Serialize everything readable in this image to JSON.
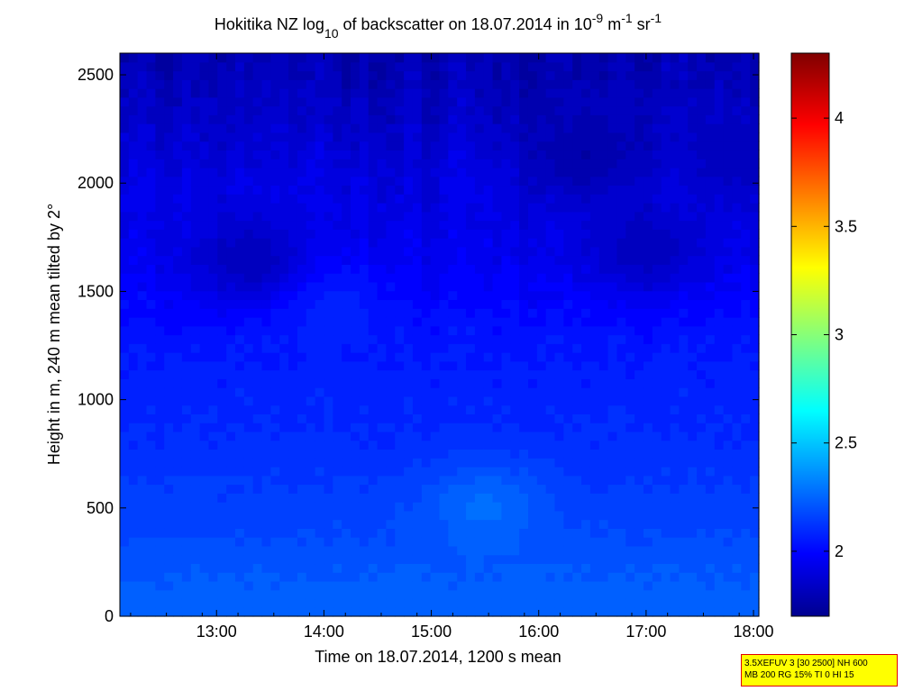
{
  "chart_data": {
    "type": "heatmap",
    "title_main": "Hokitika NZ log",
    "title_sub": "10",
    "title_mid": " of backscatter on 18.07.2014 in 10",
    "title_sup1": "-9",
    "title_m": " m",
    "title_sup2": "-1",
    "title_sr": " sr",
    "title_sup3": "-1",
    "xlabel": "Time on 18.07.2014, 1200 s mean",
    "ylabel": "Height in m, 240 m mean tilted by 2°",
    "xlim": [
      12.1,
      18.05
    ],
    "ylim": [
      0,
      2600
    ],
    "x_ticks": [
      {
        "value": 13,
        "label": "13:00"
      },
      {
        "value": 14,
        "label": "14:00"
      },
      {
        "value": 15,
        "label": "15:00"
      },
      {
        "value": 16,
        "label": "16:00"
      },
      {
        "value": 17,
        "label": "17:00"
      },
      {
        "value": 18,
        "label": "18:00"
      }
    ],
    "y_ticks": [
      {
        "value": 0,
        "label": "0"
      },
      {
        "value": 500,
        "label": "500"
      },
      {
        "value": 1000,
        "label": "1000"
      },
      {
        "value": 1500,
        "label": "1500"
      },
      {
        "value": 2000,
        "label": "2000"
      },
      {
        "value": 2500,
        "label": "2500"
      }
    ],
    "colorbar": {
      "colormap": "jet",
      "range": [
        1.7,
        4.3
      ],
      "ticks": [
        {
          "value": 2,
          "label": "2"
        },
        {
          "value": 2.5,
          "label": "2.5"
        },
        {
          "value": 3,
          "label": "3"
        },
        {
          "value": 3.5,
          "label": "3.5"
        },
        {
          "value": 4,
          "label": "4"
        }
      ]
    },
    "height_profile": [
      {
        "height": 0,
        "value": 2.28
      },
      {
        "height": 100,
        "value": 2.26
      },
      {
        "height": 250,
        "value": 2.24
      },
      {
        "height": 400,
        "value": 2.2
      },
      {
        "height": 550,
        "value": 2.18
      },
      {
        "height": 700,
        "value": 2.15
      },
      {
        "height": 900,
        "value": 2.12
      },
      {
        "height": 1100,
        "value": 2.1
      },
      {
        "height": 1300,
        "value": 2.07
      },
      {
        "height": 1500,
        "value": 2.02
      },
      {
        "height": 1700,
        "value": 1.98
      },
      {
        "height": 2000,
        "value": 1.95
      },
      {
        "height": 2300,
        "value": 1.88
      },
      {
        "height": 2600,
        "value": 1.82
      }
    ],
    "features": [
      {
        "time": 15.5,
        "height": 500,
        "value": 2.3
      },
      {
        "time": 14.0,
        "height": 1450,
        "value": 2.12
      },
      {
        "time": 16.45,
        "height": 2120,
        "value": 1.8
      },
      {
        "time": 17.0,
        "height": 1700,
        "value": 1.85
      },
      {
        "time": 13.3,
        "height": 1650,
        "value": 1.85
      },
      {
        "time": 17.9,
        "height": 2130,
        "value": 1.85
      }
    ]
  },
  "info_box": {
    "line1": "3.5XEFUV 3 [30 2500] NH 600",
    "line2": "MB 200 RG 15% TI 0 HI 15"
  }
}
